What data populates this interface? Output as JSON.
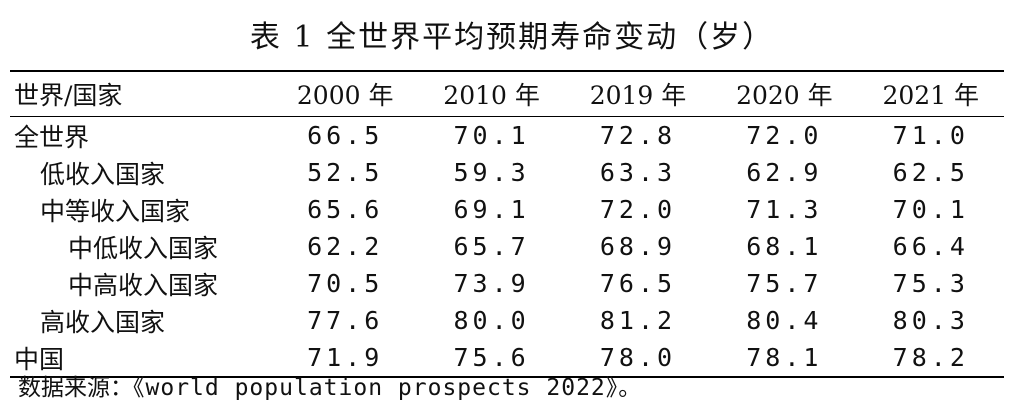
{
  "title": "表 1 全世界平均预期寿命变动（岁）",
  "table": {
    "name_header": "世界/国家",
    "years": [
      "2000 年",
      "2010 年",
      "2019 年",
      "2020 年",
      "2021 年"
    ],
    "rows": [
      {
        "name": "全世界",
        "level": 0,
        "values": [
          "66.5",
          "70.1",
          "72.8",
          "72.0",
          "71.0"
        ]
      },
      {
        "name": "低收入国家",
        "level": 1,
        "values": [
          "52.5",
          "59.3",
          "63.3",
          "62.9",
          "62.5"
        ]
      },
      {
        "name": "中等收入国家",
        "level": 1,
        "values": [
          "65.6",
          "69.1",
          "72.0",
          "71.3",
          "70.1"
        ]
      },
      {
        "name": "中低收入国家",
        "level": 2,
        "values": [
          "62.2",
          "65.7",
          "68.9",
          "68.1",
          "66.4"
        ]
      },
      {
        "name": "中高收入国家",
        "level": 2,
        "values": [
          "70.5",
          "73.9",
          "76.5",
          "75.7",
          "75.3"
        ]
      },
      {
        "name": "高收入国家",
        "level": 1,
        "values": [
          "77.6",
          "80.0",
          "81.2",
          "80.4",
          "80.3"
        ]
      },
      {
        "name": "中国",
        "level": 0,
        "values": [
          "71.9",
          "75.6",
          "78.0",
          "78.1",
          "78.2"
        ]
      }
    ]
  },
  "source": {
    "label": "数据来源：",
    "text": "《world population prospects 2022》。"
  }
}
